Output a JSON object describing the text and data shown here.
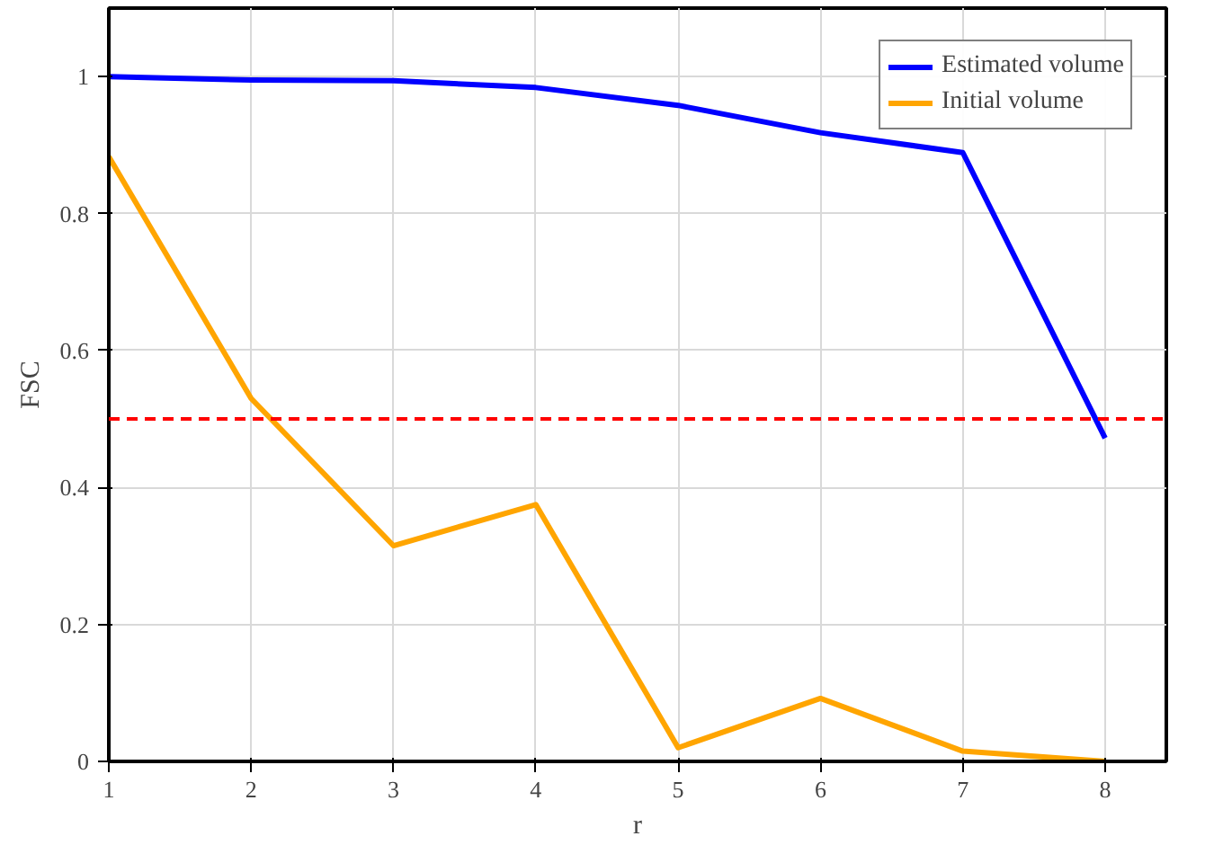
{
  "chart_data": {
    "type": "line",
    "xlabel": "r",
    "ylabel": "FSC",
    "x": [
      1,
      2,
      3,
      4,
      5,
      6,
      7,
      8
    ],
    "series": [
      {
        "name": "Estimated volume",
        "color": "#0000ff",
        "values": [
          1.0,
          0.995,
          0.994,
          0.984,
          0.958,
          0.918,
          0.889,
          0.472
        ]
      },
      {
        "name": "Initial volume",
        "color": "#ffa500",
        "values": [
          0.883,
          0.53,
          0.315,
          0.375,
          0.02,
          0.092,
          0.015,
          0.0
        ]
      }
    ],
    "xlim": [
      1,
      8.43
    ],
    "ylim": [
      0,
      1.1
    ],
    "xticks": [
      1,
      2,
      3,
      4,
      5,
      6,
      7,
      8
    ],
    "yticks": [
      0,
      0.2,
      0.4,
      0.6,
      0.8,
      1
    ],
    "ref_lines": [
      {
        "axis": "y",
        "value": 0.5,
        "color": "#ff0000",
        "line_style": "dashed"
      }
    ],
    "grid": true,
    "legend": "top right",
    "line_style": "solid",
    "marker": "none"
  }
}
